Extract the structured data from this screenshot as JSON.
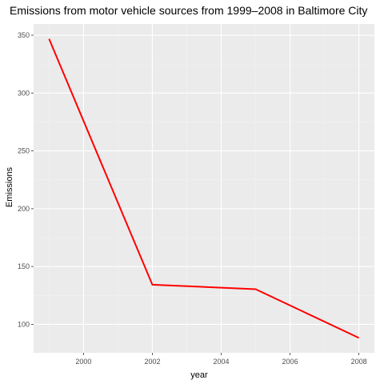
{
  "chart_data": {
    "type": "line",
    "title": "Emissions from motor vehicle sources from 1999–2008 in Baltimore City",
    "xlabel": "year",
    "ylabel": "Emissions",
    "x": [
      1999,
      2002,
      2005,
      2008
    ],
    "series": [
      {
        "values": [
          346.8,
          134.3,
          130.4,
          88.3
        ]
      }
    ],
    "xlim": [
      1998.55,
      2008.45
    ],
    "ylim": [
      75.4,
      359.7
    ],
    "x_ticks": [
      2000,
      2002,
      2004,
      2006,
      2008
    ],
    "y_ticks": [
      100,
      150,
      200,
      250,
      300,
      350
    ],
    "grid": true,
    "legend": "none",
    "colors": {
      "line": "#ff0000",
      "panel_background": "#ebebeb",
      "grid_major": "#ffffff",
      "grid_minor": "#f2f2f2",
      "tick": "#333333",
      "tick_label": "#4d4d4d"
    }
  }
}
